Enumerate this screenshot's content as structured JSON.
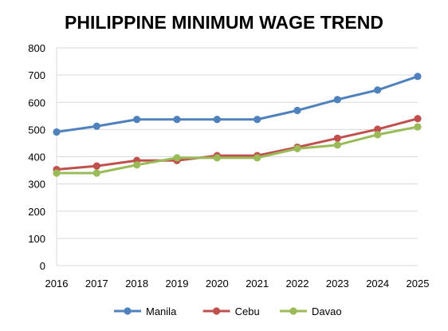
{
  "chart_data": {
    "type": "line",
    "title": "PHILIPPINE MINIMUM WAGE TREND",
    "xlabel": "",
    "ylabel": "",
    "categories": [
      "2016",
      "2017",
      "2018",
      "2019",
      "2020",
      "2021",
      "2022",
      "2023",
      "2024",
      "2025"
    ],
    "ylim": [
      0,
      800
    ],
    "yticks": [
      0,
      100,
      200,
      300,
      400,
      500,
      600,
      700,
      800
    ],
    "grid": "horizontal",
    "legend_position": "bottom",
    "series": [
      {
        "name": "Manila",
        "color": "#4F81BD",
        "values": [
          491,
          512,
          537,
          537,
          537,
          537,
          570,
          610,
          645,
          695
        ]
      },
      {
        "name": "Cebu",
        "color": "#C0504D",
        "values": [
          353,
          366,
          386,
          386,
          404,
          404,
          435,
          468,
          501,
          540
        ]
      },
      {
        "name": "Davao",
        "color": "#9BBB59",
        "values": [
          340,
          340,
          370,
          396,
          396,
          396,
          430,
          443,
          481,
          510
        ]
      }
    ]
  }
}
